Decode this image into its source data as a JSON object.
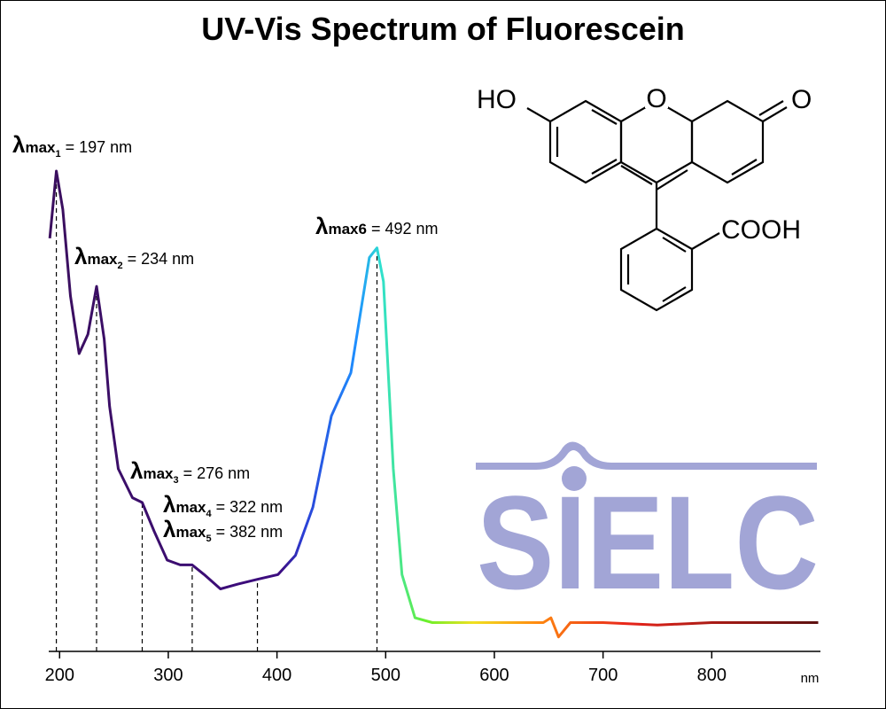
{
  "chart_data": {
    "type": "line",
    "title": "UV-Vis Spectrum of Fluorescein",
    "x": [
      191,
      197,
      203,
      210,
      218,
      226,
      234,
      241,
      246,
      254,
      267,
      276,
      287,
      299,
      311,
      322,
      333,
      348,
      364,
      382,
      401,
      417,
      433,
      450,
      468,
      485,
      492,
      498,
      507,
      515,
      527,
      543,
      550,
      600,
      645,
      652,
      659,
      670,
      700,
      750,
      800,
      850,
      898
    ],
    "values": [
      0.86,
      1.0,
      0.92,
      0.74,
      0.62,
      0.66,
      0.76,
      0.65,
      0.51,
      0.38,
      0.32,
      0.31,
      0.25,
      0.19,
      0.18,
      0.18,
      0.16,
      0.13,
      0.14,
      0.15,
      0.16,
      0.2,
      0.3,
      0.49,
      0.58,
      0.82,
      0.84,
      0.77,
      0.38,
      0.16,
      0.07,
      0.06,
      0.06,
      0.06,
      0.06,
      0.07,
      0.03,
      0.06,
      0.06,
      0.055,
      0.06,
      0.06,
      0.06
    ],
    "xlim": [
      190,
      900
    ],
    "xticks": [
      200,
      300,
      400,
      500,
      600,
      700,
      800
    ],
    "ylim": [
      0,
      1
    ],
    "x_unit": "nm",
    "annotations": [
      {
        "symbol": "λ",
        "name": "max",
        "index": "1",
        "subscript": true,
        "text": " = 197 nm",
        "x": 197
      },
      {
        "symbol": "λ",
        "name": "max",
        "index": "2",
        "subscript": true,
        "text": " = 234 nm",
        "x": 234
      },
      {
        "symbol": "λ",
        "name": "max",
        "index": "3",
        "subscript": true,
        "text": " = 276 nm",
        "x": 276
      },
      {
        "symbol": "λ",
        "name": "max",
        "index": "4",
        "subscript": true,
        "text": " = 322 nm",
        "x": 322
      },
      {
        "symbol": "λ",
        "name": "max",
        "index": "5",
        "subscript": true,
        "text": " = 382 nm",
        "x": 382
      },
      {
        "symbol": "λ",
        "name": "max",
        "index": "6",
        "subscript": false,
        "text": " = 492 nm",
        "x": 492
      }
    ]
  },
  "structure": {
    "labels": [
      "HO",
      "O",
      "O",
      "COOH"
    ]
  },
  "logo": {
    "text": "SIELC"
  }
}
